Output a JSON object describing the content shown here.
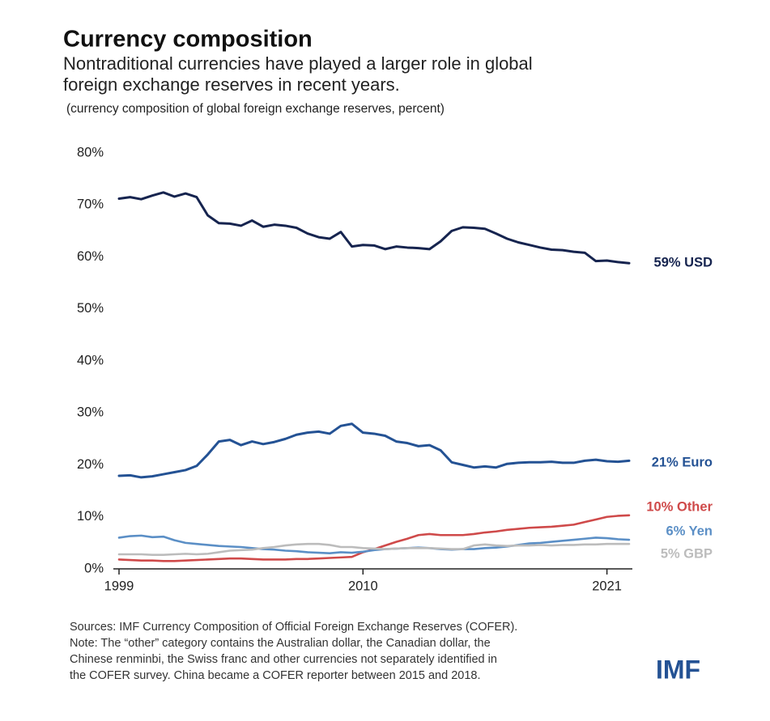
{
  "chart_data": {
    "type": "line",
    "title": "Currency composition",
    "subtitle_lines": [
      "Nontraditional currencies have played a larger role in global",
      "foreign exchange reserves in recent years."
    ],
    "axis_note": "(currency composition of global foreign exchange reserves, percent)",
    "x": [
      1999,
      1999.5,
      2000,
      2000.5,
      2001,
      2001.5,
      2002,
      2002.5,
      2003,
      2003.5,
      2004,
      2004.5,
      2005,
      2005.5,
      2006,
      2006.5,
      2007,
      2007.5,
      2008,
      2008.5,
      2009,
      2009.5,
      2010,
      2010.5,
      2011,
      2011.5,
      2012,
      2012.5,
      2013,
      2013.5,
      2014,
      2014.5,
      2015,
      2015.5,
      2016,
      2016.5,
      2017,
      2017.5,
      2018,
      2018.5,
      2019,
      2019.5,
      2020,
      2020.5,
      2021,
      2021.5,
      2022
    ],
    "series": [
      {
        "name": "59% USD",
        "color": "#16244f",
        "values": [
          71.2,
          71.5,
          71.1,
          71.8,
          72.4,
          71.6,
          72.2,
          71.5,
          68.0,
          66.5,
          66.4,
          66.0,
          67.0,
          65.8,
          66.2,
          66.0,
          65.6,
          64.5,
          63.8,
          63.5,
          64.8,
          62.0,
          62.3,
          62.2,
          61.5,
          62.0,
          61.8,
          61.7,
          61.5,
          63.0,
          65.0,
          65.7,
          65.6,
          65.4,
          64.5,
          63.5,
          62.8,
          62.3,
          61.8,
          61.4,
          61.3,
          61.0,
          60.8,
          59.2,
          59.3,
          59.0,
          58.8
        ]
      },
      {
        "name": "21% Euro",
        "color": "#245294",
        "values": [
          17.9,
          18.0,
          17.6,
          17.8,
          18.2,
          18.6,
          19.0,
          19.8,
          22.0,
          24.5,
          24.8,
          23.8,
          24.5,
          24.0,
          24.4,
          25.0,
          25.8,
          26.2,
          26.4,
          26.0,
          27.5,
          27.9,
          26.2,
          26.0,
          25.6,
          24.5,
          24.2,
          23.6,
          23.8,
          22.8,
          20.5,
          20.0,
          19.5,
          19.7,
          19.5,
          20.2,
          20.4,
          20.5,
          20.5,
          20.6,
          20.4,
          20.4,
          20.8,
          21.0,
          20.7,
          20.6,
          20.8
        ]
      },
      {
        "name": "10% Other",
        "color": "#cf4a4a",
        "values": [
          1.8,
          1.7,
          1.6,
          1.6,
          1.5,
          1.5,
          1.6,
          1.7,
          1.8,
          1.9,
          2.0,
          2.0,
          1.9,
          1.8,
          1.8,
          1.8,
          1.9,
          1.9,
          2.0,
          2.1,
          2.2,
          2.3,
          3.2,
          3.8,
          4.5,
          5.2,
          5.8,
          6.5,
          6.7,
          6.5,
          6.5,
          6.5,
          6.7,
          7.0,
          7.2,
          7.5,
          7.7,
          7.9,
          8.0,
          8.1,
          8.3,
          8.5,
          9.0,
          9.5,
          10.0,
          10.2,
          10.3
        ]
      },
      {
        "name": "6% Yen",
        "color": "#5b8fc6",
        "values": [
          6.0,
          6.3,
          6.4,
          6.1,
          6.2,
          5.5,
          5.0,
          4.8,
          4.6,
          4.4,
          4.3,
          4.2,
          4.0,
          3.8,
          3.7,
          3.5,
          3.4,
          3.2,
          3.1,
          3.0,
          3.2,
          3.1,
          3.3,
          3.6,
          3.8,
          3.9,
          4.0,
          4.1,
          4.0,
          3.8,
          3.7,
          3.8,
          3.8,
          4.0,
          4.1,
          4.3,
          4.6,
          4.9,
          5.0,
          5.2,
          5.4,
          5.6,
          5.8,
          6.0,
          5.9,
          5.7,
          5.6
        ]
      },
      {
        "name": "5% GBP",
        "color": "#bcbcbc",
        "values": [
          2.8,
          2.8,
          2.8,
          2.7,
          2.7,
          2.8,
          2.9,
          2.8,
          2.9,
          3.2,
          3.5,
          3.6,
          3.7,
          4.0,
          4.2,
          4.5,
          4.7,
          4.8,
          4.8,
          4.6,
          4.2,
          4.2,
          4.0,
          3.9,
          3.8,
          3.9,
          4.0,
          4.0,
          4.0,
          3.9,
          3.8,
          3.8,
          4.5,
          4.7,
          4.5,
          4.4,
          4.5,
          4.5,
          4.6,
          4.5,
          4.6,
          4.6,
          4.7,
          4.7,
          4.8,
          4.8,
          4.8
        ]
      }
    ],
    "xlim": [
      1999,
      2022
    ],
    "xticks": [
      1999,
      2010,
      2021
    ],
    "ylim": [
      0,
      80
    ],
    "yticks": [
      {
        "value": 0,
        "label": "0%"
      },
      {
        "value": 10,
        "label": "10%"
      },
      {
        "value": 20,
        "label": "20%"
      },
      {
        "value": 30,
        "label": "30%"
      },
      {
        "value": 40,
        "label": "40%"
      },
      {
        "value": 50,
        "label": "50%"
      },
      {
        "value": 60,
        "label": "60%"
      },
      {
        "value": 70,
        "label": "70%"
      },
      {
        "value": 80,
        "label": "80%"
      }
    ],
    "grid": false,
    "footnote_lines": [
      "Sources: IMF Currency Composition of Official Foreign Exchange Reserves (COFER).",
      "Note: The “other” category contains the Australian dollar, the Canadian dollar, the",
      "Chinese renminbi, the Swiss franc and other currencies not separately identified in",
      "the COFER survey. China became a COFER reporter between 2015 and 2018."
    ],
    "logo": "IMF"
  }
}
